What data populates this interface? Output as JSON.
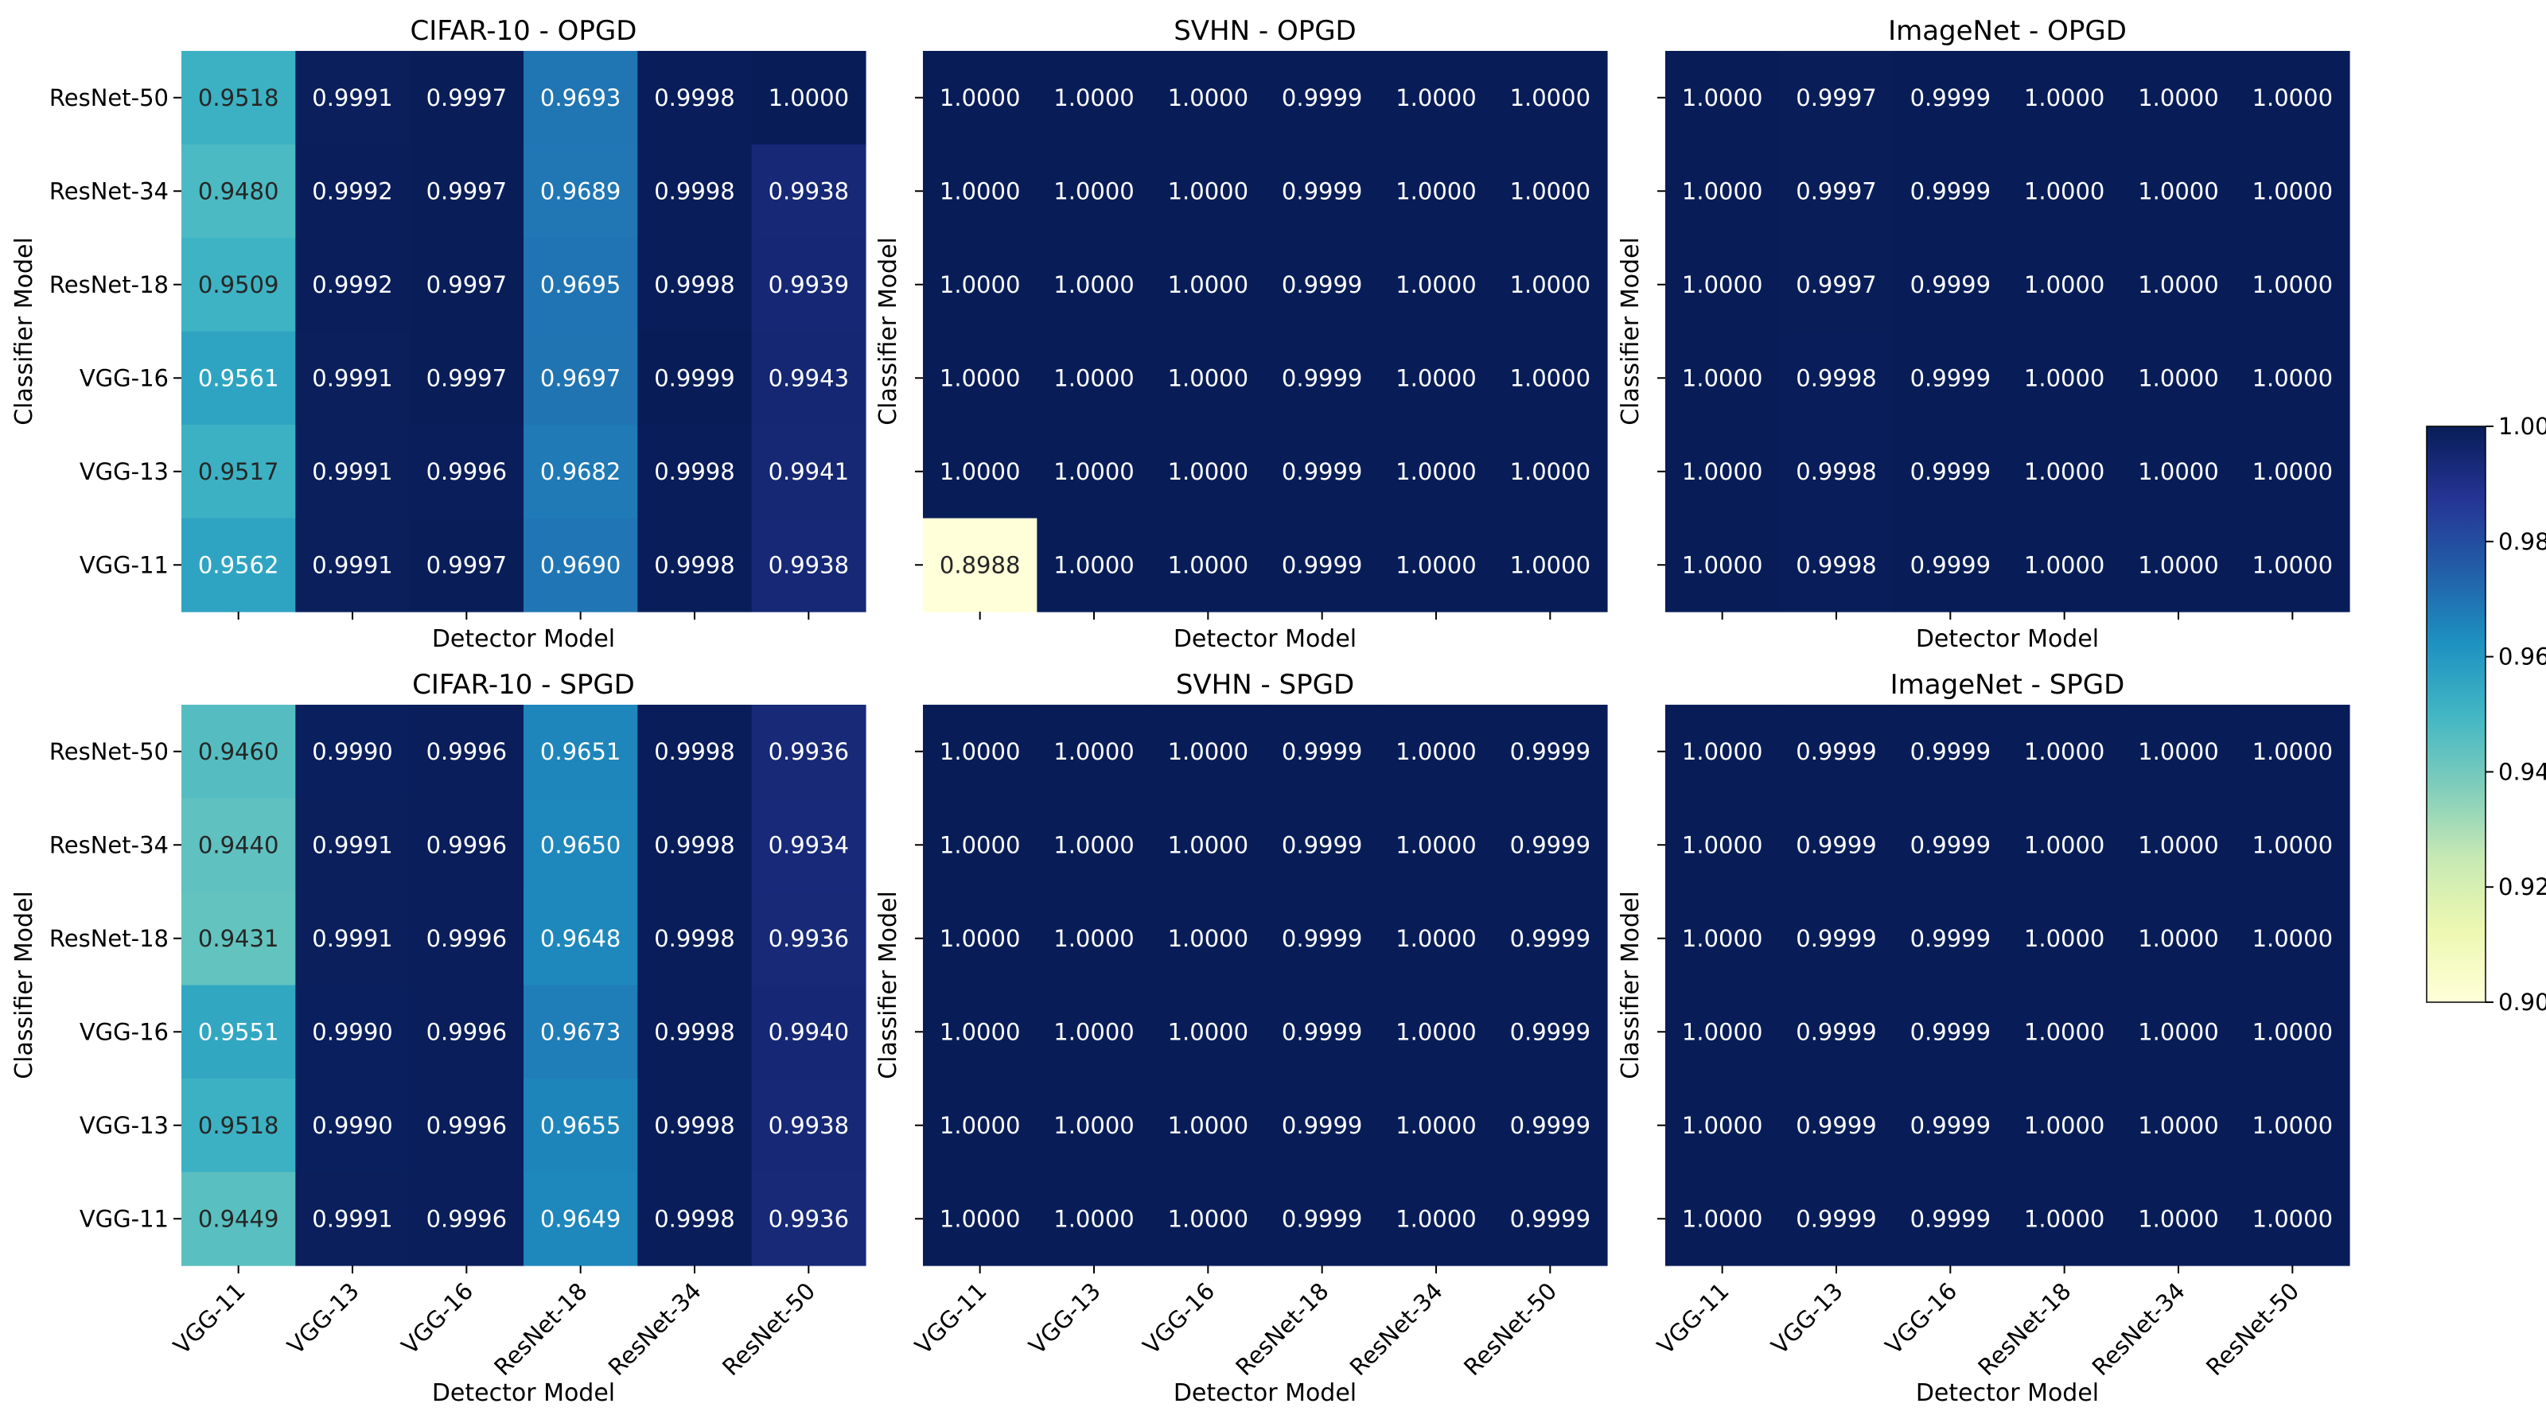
{
  "chart_data": {
    "type": "heatmap",
    "xlabel": "Detector Model",
    "ylabel": "Classifier Model",
    "x_categories": [
      "VGG-11",
      "VGG-13",
      "VGG-16",
      "ResNet-18",
      "ResNet-34",
      "ResNet-50"
    ],
    "y_categories": [
      "ResNet-50",
      "ResNet-34",
      "ResNet-18",
      "VGG-16",
      "VGG-13",
      "VGG-11"
    ],
    "colorbar": {
      "range": [
        0.9,
        1.0
      ],
      "ticks": [
        "0.90",
        "0.92",
        "0.94",
        "0.96",
        "0.98",
        "1.00"
      ],
      "colormap": [
        "#ffffd9",
        "#edf8b1",
        "#c7e9b4",
        "#7fcdbb",
        "#41b6c4",
        "#1d91c0",
        "#225ea8",
        "#253494",
        "#081d58"
      ]
    },
    "panels": [
      {
        "title": "CIFAR-10 - OPGD",
        "values": [
          [
            0.9518,
            0.9991,
            0.9997,
            0.9693,
            0.9998,
            1.0
          ],
          [
            0.948,
            0.9992,
            0.9997,
            0.9689,
            0.9998,
            0.9938
          ],
          [
            0.9509,
            0.9992,
            0.9997,
            0.9695,
            0.9998,
            0.9939
          ],
          [
            0.9561,
            0.9991,
            0.9997,
            0.9697,
            0.9999,
            0.9943
          ],
          [
            0.9517,
            0.9991,
            0.9996,
            0.9682,
            0.9998,
            0.9941
          ],
          [
            0.9562,
            0.9991,
            0.9997,
            0.969,
            0.9998,
            0.9938
          ]
        ]
      },
      {
        "title": "SVHN - OPGD",
        "values": [
          [
            1.0,
            1.0,
            1.0,
            0.9999,
            1.0,
            1.0
          ],
          [
            1.0,
            1.0,
            1.0,
            0.9999,
            1.0,
            1.0
          ],
          [
            1.0,
            1.0,
            1.0,
            0.9999,
            1.0,
            1.0
          ],
          [
            1.0,
            1.0,
            1.0,
            0.9999,
            1.0,
            1.0
          ],
          [
            1.0,
            1.0,
            1.0,
            0.9999,
            1.0,
            1.0
          ],
          [
            0.8988,
            1.0,
            1.0,
            0.9999,
            1.0,
            1.0
          ]
        ]
      },
      {
        "title": "ImageNet - OPGD",
        "values": [
          [
            1.0,
            0.9997,
            0.9999,
            1.0,
            1.0,
            1.0
          ],
          [
            1.0,
            0.9997,
            0.9999,
            1.0,
            1.0,
            1.0
          ],
          [
            1.0,
            0.9997,
            0.9999,
            1.0,
            1.0,
            1.0
          ],
          [
            1.0,
            0.9998,
            0.9999,
            1.0,
            1.0,
            1.0
          ],
          [
            1.0,
            0.9998,
            0.9999,
            1.0,
            1.0,
            1.0
          ],
          [
            1.0,
            0.9998,
            0.9999,
            1.0,
            1.0,
            1.0
          ]
        ]
      },
      {
        "title": "CIFAR-10 - SPGD",
        "values": [
          [
            0.946,
            0.999,
            0.9996,
            0.9651,
            0.9998,
            0.9936
          ],
          [
            0.944,
            0.9991,
            0.9996,
            0.965,
            0.9998,
            0.9934
          ],
          [
            0.9431,
            0.9991,
            0.9996,
            0.9648,
            0.9998,
            0.9936
          ],
          [
            0.9551,
            0.999,
            0.9996,
            0.9673,
            0.9998,
            0.994
          ],
          [
            0.9518,
            0.999,
            0.9996,
            0.9655,
            0.9998,
            0.9938
          ],
          [
            0.9449,
            0.9991,
            0.9996,
            0.9649,
            0.9998,
            0.9936
          ]
        ]
      },
      {
        "title": "SVHN - SPGD",
        "values": [
          [
            1.0,
            1.0,
            1.0,
            0.9999,
            1.0,
            0.9999
          ],
          [
            1.0,
            1.0,
            1.0,
            0.9999,
            1.0,
            0.9999
          ],
          [
            1.0,
            1.0,
            1.0,
            0.9999,
            1.0,
            0.9999
          ],
          [
            1.0,
            1.0,
            1.0,
            0.9999,
            1.0,
            0.9999
          ],
          [
            1.0,
            1.0,
            1.0,
            0.9999,
            1.0,
            0.9999
          ],
          [
            1.0,
            1.0,
            1.0,
            0.9999,
            1.0,
            0.9999
          ]
        ]
      },
      {
        "title": "ImageNet - SPGD",
        "values": [
          [
            1.0,
            0.9999,
            0.9999,
            1.0,
            1.0,
            1.0
          ],
          [
            1.0,
            0.9999,
            0.9999,
            1.0,
            1.0,
            1.0
          ],
          [
            1.0,
            0.9999,
            0.9999,
            1.0,
            1.0,
            1.0
          ],
          [
            1.0,
            0.9999,
            0.9999,
            1.0,
            1.0,
            1.0
          ],
          [
            1.0,
            0.9999,
            0.9999,
            1.0,
            1.0,
            1.0
          ],
          [
            1.0,
            0.9999,
            0.9999,
            1.0,
            1.0,
            1.0
          ]
        ]
      }
    ]
  }
}
